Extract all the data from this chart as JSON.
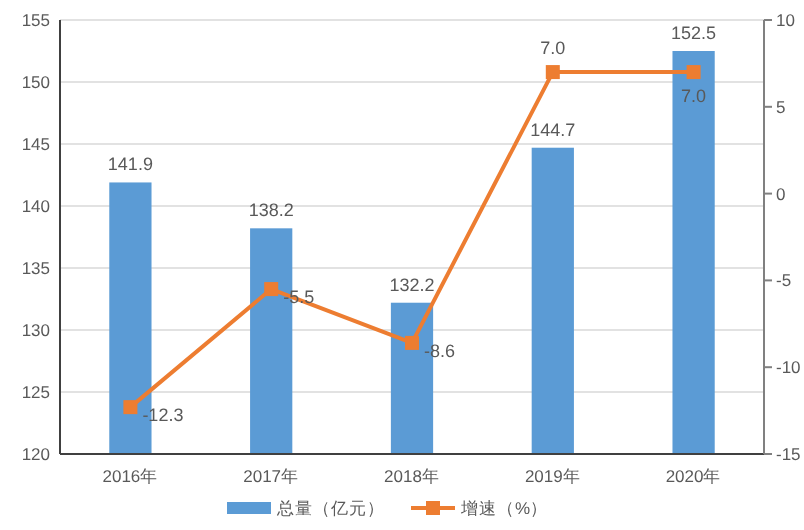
{
  "chart_data": {
    "type": "bar",
    "categories": [
      "2016年",
      "2017年",
      "2018年",
      "2019年",
      "2020年"
    ],
    "series": [
      {
        "name": "总量（亿元）",
        "color": "#5b9bd5",
        "values": [
          141.9,
          138.2,
          132.2,
          144.7,
          152.5
        ],
        "value_labels": [
          "141.9",
          "138.2",
          "132.2",
          "144.7",
          "152.5"
        ]
      },
      {
        "name": "增速（%）",
        "type": "line",
        "axis": "y2",
        "color": "#ed7d31",
        "values": [
          -12.3,
          -5.5,
          -8.6,
          7.0,
          7.0
        ],
        "value_labels": [
          "-12.3",
          "-5.5",
          "-8.6",
          "7.0",
          "7.0"
        ]
      }
    ],
    "ylim": [
      120,
      155
    ],
    "yticks": [
      120,
      125,
      130,
      135,
      140,
      145,
      150,
      155
    ],
    "y2lim": [
      -15,
      10
    ],
    "y2ticks": [
      -15,
      -10,
      -5,
      0,
      5,
      10
    ],
    "grid": "y",
    "legend": "bottom",
    "marker": "square"
  }
}
